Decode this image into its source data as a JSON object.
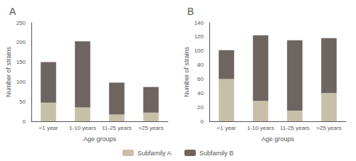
{
  "chart_data": [
    {
      "type": "bar",
      "title": "A",
      "stacked": true,
      "legend": "bottom",
      "categories": [
        "<1 year",
        "1-10 years",
        "11-25 years",
        ">25 years"
      ],
      "series": [
        {
          "name": "Subfamily A",
          "color": "#c8bfa8",
          "values": [
            47,
            35,
            17,
            22
          ]
        },
        {
          "name": "Subfamily B",
          "color": "#6e6560",
          "values": [
            103,
            168,
            81,
            65
          ]
        }
      ],
      "ylim": [
        0,
        250
      ],
      "yticks": [
        0,
        50,
        100,
        150,
        200,
        250
      ],
      "ylabel": "Number of strains",
      "xlabel": "Age groups"
    },
    {
      "type": "bar",
      "title": "B",
      "stacked": true,
      "legend": "bottom",
      "categories": [
        "<1 year",
        "1-10 years",
        "11-25 years",
        ">25 years"
      ],
      "series": [
        {
          "name": "Subfamily A",
          "color": "#c8bfa8",
          "values": [
            60,
            29,
            15,
            40
          ]
        },
        {
          "name": "Subfamily B",
          "color": "#6e6560",
          "values": [
            41,
            93,
            100,
            78
          ]
        }
      ],
      "ylim": [
        0,
        140
      ],
      "yticks": [
        0,
        20,
        40,
        60,
        80,
        100,
        120,
        140
      ],
      "ylabel": "Number of strains",
      "xlabel": "Age groups"
    }
  ]
}
